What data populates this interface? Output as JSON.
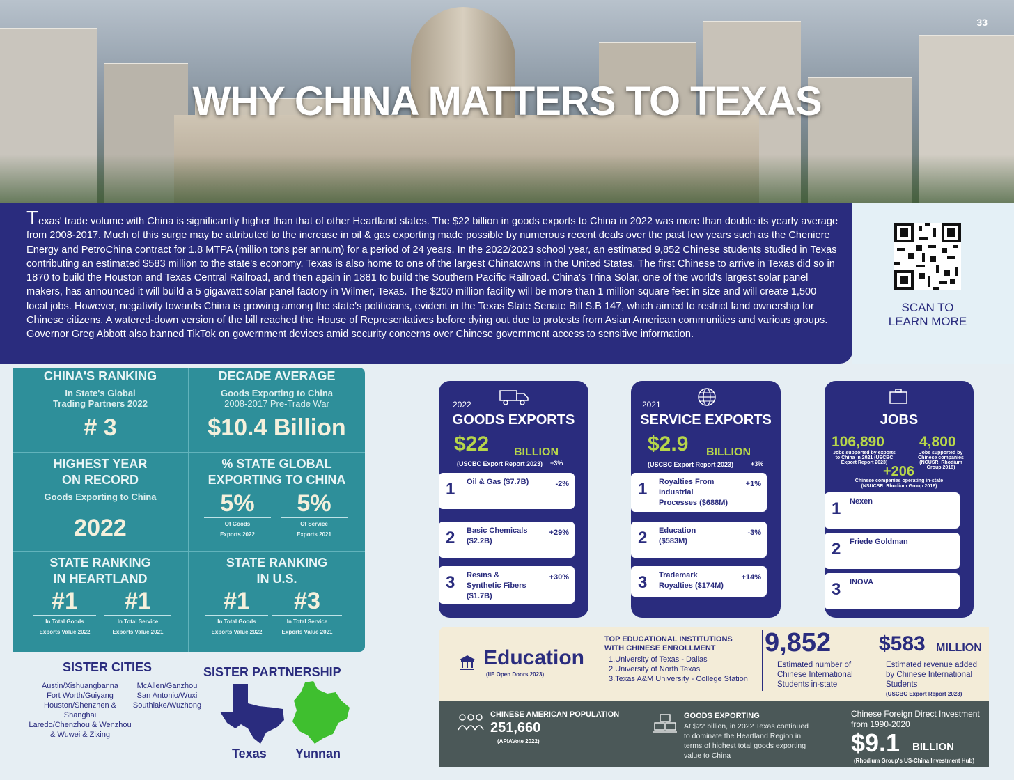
{
  "page_number": "33",
  "title": "WHY CHINA MATTERS TO TEXAS",
  "intro": {
    "dropcap": "T",
    "text": "exas' trade volume with China is significantly higher than that of other Heartland states. The $22 billion in goods exports to China in 2022 was more than double its yearly average from 2008-2017. Much of this surge may be attributed to the increase in oil & gas exporting made possible by numerous recent deals over the past few years such as the Cheniere Energy and PetroChina contract for 1.8 MTPA (million tons per annum) for a period of 24 years. In the 2022/2023 school year, an estimated 9,852 Chinese students studied in Texas contributing an estimated $583 million to the state's economy. Texas is also home to one of the largest Chinatowns in the United States. The first Chinese to arrive in Texas did so in 1870 to build the Houston and Texas Central Railroad, and then again in 1881 to build the Southern Pacific Railroad. China's Trina Solar, one of the world's largest solar panel makers, has announced it will build a 5 gigawatt solar panel factory in Wilmer, Texas. The $200 million facility will be more than 1 million square feet in size and will create 1,500 local jobs. However, negativity towards China is growing among the state's politicians, evident in the Texas State Senate Bill S.B 147, which aimed to restrict land ownership for Chinese citizens. A watered-down version of the bill reached the House of Representatives before dying out due to protests from Asian American communities and various groups. Governor Greg Abbott also banned TikTok on government devices amid security concerns over Chinese government access to sensitive information."
  },
  "qr": {
    "scan_line1": "SCAN TO",
    "scan_line2": "LEARN MORE",
    "icon": "qr-code"
  },
  "stats": {
    "ranking": {
      "h": "CHINA'S RANKING",
      "s1": "In State's Global",
      "s2": "Trading Partners 2022",
      "v": "# 3"
    },
    "decade": {
      "h": "DECADE AVERAGE",
      "s1": "Goods Exporting to China",
      "s2": "2008-2017 Pre-Trade War",
      "v": "$10.4 Billion"
    },
    "highest": {
      "h1": "HIGHEST YEAR",
      "h2": "ON RECORD",
      "s1": "Goods Exporting to China",
      "v": "2022"
    },
    "pct": {
      "h1": "% STATE GLOBAL",
      "h2": "EXPORTING TO CHINA",
      "v1": "5%",
      "v2": "5%",
      "l1a": "Of Goods",
      "l1b": "Exports 2022",
      "l2a": "Of Service",
      "l2b": "Exports 2021"
    },
    "heartland": {
      "h1": "STATE RANKING",
      "h2": "IN HEARTLAND",
      "v1": "#1",
      "v2": "#1",
      "l1a": "In Total Goods",
      "l1b": "Exports Value 2022",
      "l2a": "In Total Service",
      "l2b": "Exports Value 2021"
    },
    "us": {
      "h1": "STATE RANKING",
      "h2": "IN U.S.",
      "v1": "#1",
      "v2": "#3",
      "l1a": "In Total Goods",
      "l1b": "Exports Value 2022",
      "l2a": "In Total Service",
      "l2b": "Exports Value 2021"
    }
  },
  "sister": {
    "heading": "SISTER CITIES",
    "col1": [
      "Austin/Xishuangbanna",
      "Fort Worth/Guiyang",
      "Houston/Shenzhen &",
      "Shanghai",
      "Laredo/Chenzhou & Wenzhou",
      "& Wuwei & Zixing"
    ],
    "col2": [
      "McAllen/Ganzhou",
      "San Antonio/Wuxi",
      "Southlake/Wuzhong"
    ]
  },
  "partnership": {
    "heading": "SISTER PARTNERSHIP",
    "left": "Texas",
    "right": "Yunnan",
    "texas_color": "#2a2c7e",
    "yunnan_color": "#3fbf2f"
  },
  "goods": {
    "year": "2022",
    "title": "GOODS EXPORTS",
    "amount": "$22",
    "unit": "BILLION",
    "source": "(USCBC Export Report 2023)",
    "change": "+3%",
    "rows": [
      {
        "n": "1",
        "l1": "Oil & Gas ($7.7B)",
        "l2": "",
        "l3": "",
        "c": "-2%"
      },
      {
        "n": "2",
        "l1": "Basic Chemicals",
        "l2": "($2.2B)",
        "l3": "",
        "c": "+29%"
      },
      {
        "n": "3",
        "l1": "Resins &",
        "l2": "Synthetic Fibers",
        "l3": "($1.7B)",
        "c": "+30%"
      }
    ]
  },
  "services": {
    "year": "2021",
    "title": "SERVICE EXPORTS",
    "amount": "$2.9",
    "unit": "BILLION",
    "source": "(USCBC Export Report 2023)",
    "change": "+3%",
    "rows": [
      {
        "n": "1",
        "l1": "Royalties From",
        "l2": "Industrial",
        "l3": "Processes ($688M)",
        "c": "+1%"
      },
      {
        "n": "2",
        "l1": "Education",
        "l2": "($583M)",
        "l3": "",
        "c": "-3%"
      },
      {
        "n": "3",
        "l1": "Trademark",
        "l2": "Royalties ($174M)",
        "l3": "",
        "c": "+14%"
      }
    ]
  },
  "jobs": {
    "title": "JOBS",
    "a_value": "106,890",
    "a_label": "Jobs supported by exports to China in 2021 (USCBC Export Report 2023)",
    "b_value": "4,800",
    "b_label": "Jobs supported by Chinese companies (NCUSR, Rhodium Group 2018)",
    "c_value": "+206",
    "c_label1": "Chinese companies operating in-state",
    "c_label2": "(NSUCSR, Rhodium Group 2018)",
    "rows": [
      {
        "n": "1",
        "l": "Nexen"
      },
      {
        "n": "2",
        "l": "Friede Goldman"
      },
      {
        "n": "3",
        "l": "INOVA"
      }
    ]
  },
  "education": {
    "title": "Education",
    "source": "(IIE Open Doors 2023)",
    "top_h1": "TOP EDUCATIONAL INSTITUTIONS",
    "top_h2": "WITH CHINESE ENROLLMENT",
    "list": [
      "1.University of Texas - Dallas",
      "2.University of North Texas",
      "3.Texas A&M University - College Station"
    ],
    "students": "9,852",
    "students_l1": "Estimated number of",
    "students_l2": "Chinese International",
    "students_l3": "Students in-state",
    "revenue": "$583",
    "revenue_unit": "MILLION",
    "revenue_l1": "Estimated revenue added",
    "revenue_l2": "by Chinese International",
    "revenue_l3": "Students",
    "revenue_src": "(USCBC Export Report 2023)"
  },
  "bottom": {
    "pop_h": "CHINESE AMERICAN POPULATION",
    "pop_v": "251,660",
    "pop_src": "(APIAVote 2022)",
    "goods_h": "GOODS EXPORTING",
    "goods_t1": "At $22 billion, in 2022 Texas continued",
    "goods_t2": "to dominate the Heartland Region in",
    "goods_t3": "terms of highest total goods exporting",
    "goods_t4": "value to China",
    "fdi_h1": "Chinese Foreign Direct Investment",
    "fdi_h2": "from 1990-2020",
    "fdi_v": "$9.1",
    "fdi_unit": "BILLION",
    "fdi_src": "(Rhodium Group's US-China Investment Hub)"
  }
}
